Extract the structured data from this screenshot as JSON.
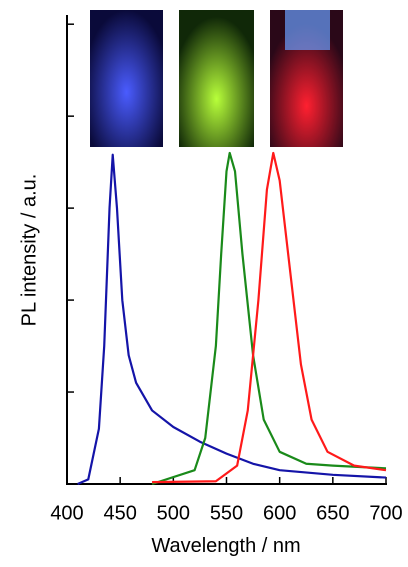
{
  "chart_data": {
    "type": "line",
    "x_label": "Wavelength / nm",
    "y_label": "PL intensity / a.u.",
    "xlim": [
      400,
      700
    ],
    "xticks": [
      400,
      450,
      500,
      550,
      600,
      650,
      700
    ],
    "ylim": [
      0,
      5.1
    ],
    "yticks": [
      0,
      1,
      2,
      3,
      4,
      5
    ],
    "ytick_labels": false,
    "grid": false,
    "series": [
      {
        "color": "#1414a8",
        "x": [
          410,
          420,
          430,
          435,
          440,
          443,
          447,
          452,
          458,
          465,
          480,
          500,
          525,
          550,
          575,
          600,
          650,
          700
        ],
        "values": [
          0,
          0.05,
          0.6,
          1.5,
          3.0,
          3.58,
          3.0,
          2.0,
          1.4,
          1.1,
          0.8,
          0.62,
          0.46,
          0.33,
          0.22,
          0.15,
          0.1,
          0.07
        ]
      },
      {
        "color": "#1a8a1a",
        "x": [
          480,
          520,
          530,
          540,
          545,
          550,
          553,
          558,
          565,
          575,
          585,
          600,
          625,
          650,
          700
        ],
        "values": [
          0,
          0.15,
          0.5,
          1.5,
          2.5,
          3.4,
          3.6,
          3.4,
          2.5,
          1.4,
          0.7,
          0.35,
          0.22,
          0.2,
          0.17
        ]
      },
      {
        "color": "#ff1a1a",
        "x": [
          480,
          540,
          560,
          570,
          580,
          588,
          594,
          600,
          610,
          620,
          630,
          645,
          670,
          700
        ],
        "values": [
          0.02,
          0.03,
          0.2,
          0.8,
          2.0,
          3.2,
          3.6,
          3.3,
          2.3,
          1.3,
          0.7,
          0.35,
          0.2,
          0.15
        ]
      }
    ]
  }
}
